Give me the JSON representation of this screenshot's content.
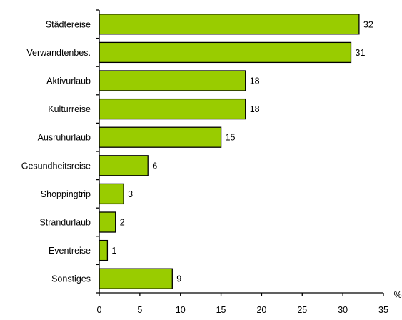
{
  "chart_data": {
    "type": "bar",
    "orientation": "horizontal",
    "categories": [
      "Städtereise",
      "Verwandtenbes.",
      "Aktivurlaub",
      "Kulturreise",
      "Ausruhurlaub",
      "Gesundheitsreise",
      "Shoppingtrip",
      "Strandurlaub",
      "Eventreise",
      "Sonstiges"
    ],
    "values": [
      32,
      31,
      18,
      18,
      15,
      6,
      3,
      2,
      1,
      9
    ],
    "xlim": [
      0,
      35
    ],
    "xticks": [
      0,
      5,
      10,
      15,
      20,
      25,
      30,
      35
    ],
    "xunit": "%",
    "grid": false,
    "legend": "none",
    "colors": {
      "bar_fill": "#99cc00",
      "bar_stroke": "#000000",
      "axis": "#000000"
    }
  }
}
